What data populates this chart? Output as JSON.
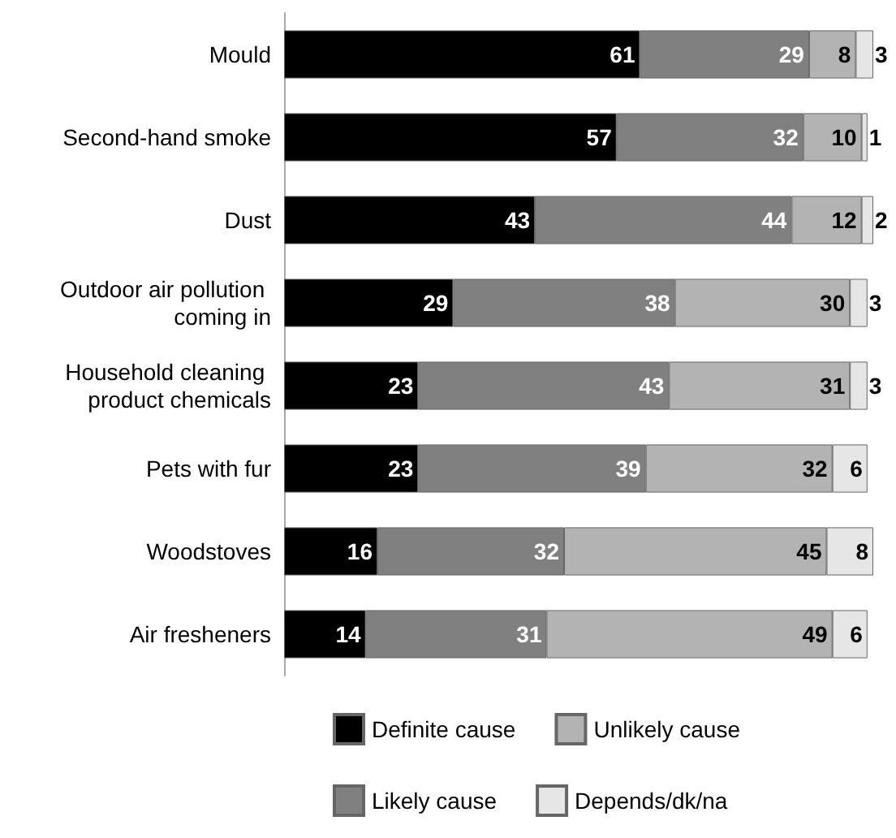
{
  "chart_data": {
    "type": "bar",
    "orientation": "horizontal",
    "stacked": true,
    "data_labels": true,
    "legend": "bottom",
    "grid": false,
    "categories": [
      "Mould",
      "Second-hand smoke",
      "Dust",
      "Outdoor air pollution coming in",
      "Household cleaning product chemicals",
      "Pets with fur",
      "Woodstoves",
      "Air fresheners"
    ],
    "series": [
      {
        "name": "Definite cause",
        "color": "#000000",
        "values": [
          61,
          57,
          43,
          29,
          23,
          23,
          16,
          14
        ]
      },
      {
        "name": "Likely cause",
        "color": "#808080",
        "values": [
          29,
          32,
          44,
          38,
          43,
          39,
          32,
          31
        ]
      },
      {
        "name": "Unlikely cause",
        "color": "#b3b3b3",
        "values": [
          8,
          10,
          12,
          30,
          31,
          32,
          45,
          49
        ]
      },
      {
        "name": "Depends/dk/na",
        "color": "#e6e6e6",
        "values": [
          3,
          1,
          2,
          3,
          3,
          6,
          8,
          6
        ]
      }
    ]
  }
}
